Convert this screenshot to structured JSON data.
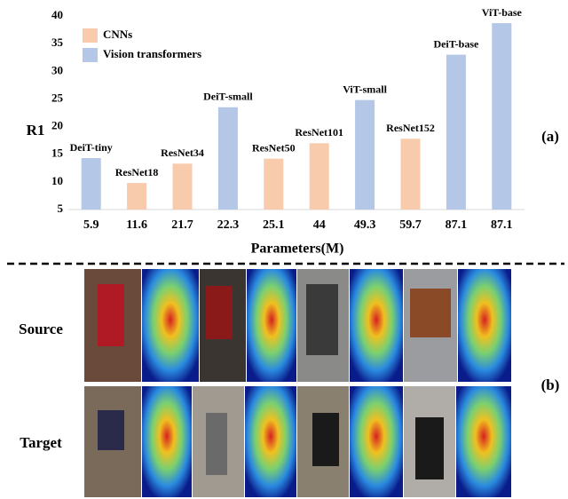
{
  "chart_data": {
    "type": "bar",
    "categories": [
      "5.9",
      "11.6",
      "21.7",
      "22.3",
      "25.1",
      "44",
      "49.3",
      "59.7",
      "87.1",
      "87.1"
    ],
    "bar_labels": [
      "DeiT-tiny",
      "ResNet18",
      "ResNet34",
      "DeiT-small",
      "ResNet50",
      "ResNet101",
      "ViT-small",
      "ResNet152",
      "DeiT-base",
      "ViT-base"
    ],
    "series": [
      {
        "name": "CNNs",
        "color": "#f8cbad",
        "values": [
          null,
          9.8,
          13.3,
          null,
          14.2,
          17,
          null,
          17.8,
          null,
          null
        ]
      },
      {
        "name": "Vision transformers",
        "color": "#b4c7e7",
        "values": [
          14.3,
          null,
          null,
          23.5,
          null,
          null,
          24.8,
          null,
          33,
          38.7
        ]
      }
    ],
    "y_label": "R1",
    "x_label": "Parameters(M)",
    "ylim": [
      5,
      40
    ],
    "yticks": [
      5,
      10,
      15,
      20,
      25,
      30,
      35,
      40
    ],
    "grid": false,
    "legend": "upper left"
  },
  "panel_labels": [
    "(a)",
    "(b)"
  ],
  "row_labels": [
    "Source",
    "Target"
  ]
}
